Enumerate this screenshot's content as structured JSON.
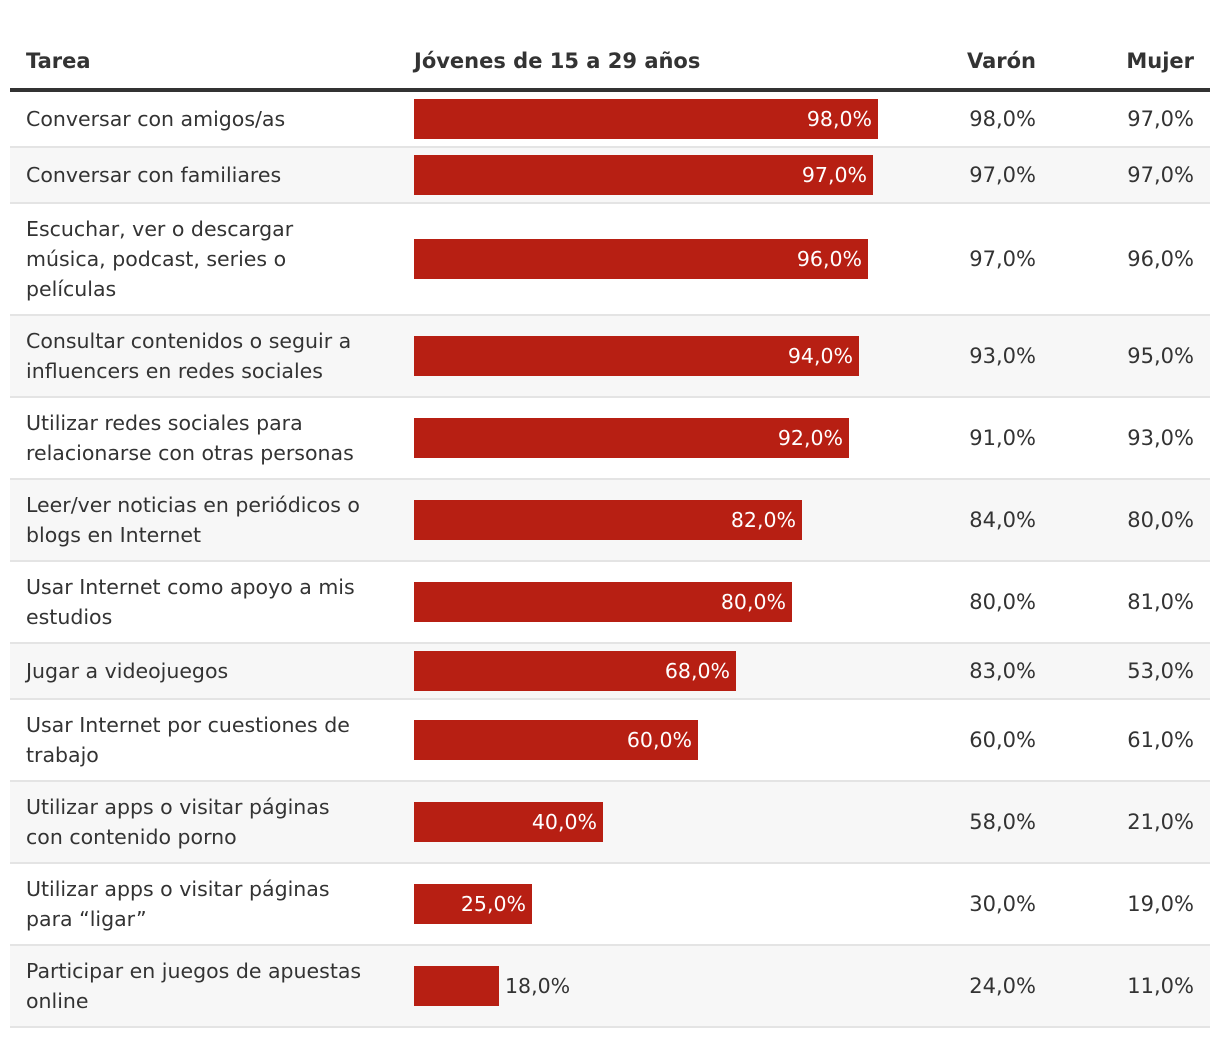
{
  "headers": {
    "task": "Tarea",
    "young": "Jóvenes de 15 a 29 años",
    "varon": "Varón",
    "mujer": "Mujer"
  },
  "colors": {
    "bar": "#b71f13",
    "text": "#333333",
    "alt_row": "#f7f7f7"
  },
  "chart_data": {
    "type": "bar",
    "orientation": "horizontal",
    "title": "",
    "xlabel": "",
    "ylabel": "Tarea",
    "xlim": [
      0,
      100
    ],
    "categories": [
      "Conversar con amigos/as",
      "Conversar con familiares",
      "Escuchar, ver o descargar música, podcast, series o películas",
      "Consultar contenidos o seguir a influencers en redes sociales",
      "Utilizar redes sociales para relacionarse con otras personas",
      "Leer/ver noticias en periódicos o blogs en Internet",
      "Usar Internet como apoyo a mis estudios",
      "Jugar a videojuegos",
      "Usar Internet por cuestiones de trabajo",
      "Utilizar apps o visitar páginas con contenido porno",
      "Utilizar apps o visitar páginas para “ligar”",
      "Participar en juegos de apuestas online"
    ],
    "series": [
      {
        "name": "Jóvenes de 15 a 29 años",
        "values": [
          98,
          97,
          96,
          94,
          92,
          82,
          80,
          68,
          60,
          40,
          25,
          18
        ],
        "labels": [
          "98,0%",
          "97,0%",
          "96,0%",
          "94,0%",
          "92,0%",
          "82,0%",
          "80,0%",
          "68,0%",
          "60,0%",
          "40,0%",
          "25,0%",
          "18,0%"
        ]
      },
      {
        "name": "Varón",
        "values": [
          98,
          97,
          97,
          93,
          91,
          84,
          80,
          83,
          60,
          58,
          30,
          24
        ],
        "labels": [
          "98,0%",
          "97,0%",
          "97,0%",
          "93,0%",
          "91,0%",
          "84,0%",
          "80,0%",
          "83,0%",
          "60,0%",
          "58,0%",
          "30,0%",
          "24,0%"
        ]
      },
      {
        "name": "Mujer",
        "values": [
          97,
          97,
          96,
          95,
          93,
          80,
          81,
          53,
          61,
          21,
          19,
          11
        ],
        "labels": [
          "97,0%",
          "97,0%",
          "96,0%",
          "95,0%",
          "93,0%",
          "80,0%",
          "81,0%",
          "53,0%",
          "61,0%",
          "21,0%",
          "19,0%",
          "11,0%"
        ]
      }
    ]
  }
}
